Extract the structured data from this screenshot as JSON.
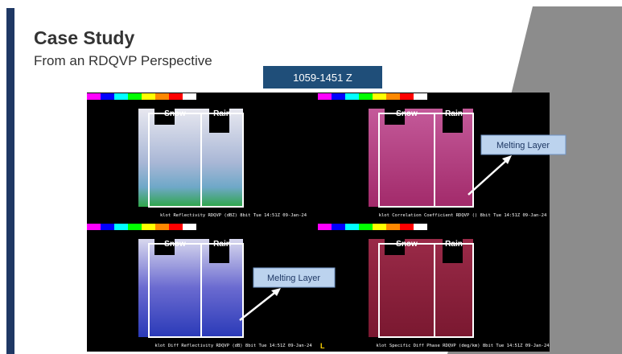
{
  "header": {
    "title": "Case Study",
    "subtitle": "From an RDQVP Perspective",
    "time_box": "1059-1451 Z"
  },
  "panels": [
    {
      "snow": "Snow",
      "rain": "Rain",
      "caption": "klot Reflectivity RDQVP (dBZ) 8bit  Tue 14:51Z 09-Jan-24"
    },
    {
      "snow": "Snow",
      "rain": "Rain",
      "caption": "klot Correlation Coefficient RDQVP () 8bit  Tue 14:51Z 09-Jan-24"
    },
    {
      "snow": "Snow",
      "rain": "Rain",
      "caption": "klot Diff Reflectivity RDQVP (dB) 8bit  Tue 14:51Z 09-Jan-24"
    },
    {
      "snow": "Snow",
      "rain": "Rain",
      "caption": "klot Specific Diff Phase RDQVP (deg/km) 8bit  Tue 14:51Z 09-Jan-24"
    }
  ],
  "callouts": [
    "Melting Layer",
    "Melting Layer"
  ],
  "marker": "L"
}
